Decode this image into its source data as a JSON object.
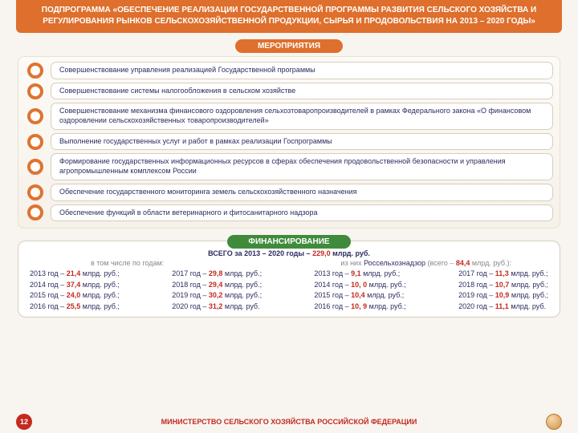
{
  "header": {
    "title": "ПОДПРОГРАММА «ОБЕСПЕЧЕНИЕ РЕАЛИЗАЦИИ ГОСУДАРСТВЕННОЙ ПРОГРАММЫ РАЗВИТИЯ СЕЛЬСКОГО ХОЗЯЙСТВА И РЕГУЛИРОВАНИЯ РЫНКОВ СЕЛЬСКОХОЗЯЙСТВЕННОЙ ПРОДУКЦИИ, СЫРЬЯ И ПРОДОВОЛЬСТВИЯ НА 2013 – 2020 ГОДЫ»"
  },
  "tabs": {
    "activities_label": "МЕРОПРИЯТИЯ",
    "finance_label": "ФИНАНСИРОВАНИЕ"
  },
  "activities": [
    "Совершенствование управления реализацией Государственной программы",
    "Совершенствование системы налогообложения в сельском хозяйстве",
    "Совершенствование механизма финансового оздоровления сельхозтоваропроизводителей в рамках Федерального закона «О финансовом оздоровлении сельскохозяйственных товаропроизводителей»",
    "Выполнение государственных услуг и работ в рамках реализации Госпрограммы",
    "Формирование государственных информационных ресурсов в сферах обеспечения продовольственной безопасности и управления агропромышленным комплексом России",
    "Обеспечение государственного мониторинга земель сельскохозяйственного назначения",
    "Обеспечение функций в области ветеринарного и фитосанитарного надзора"
  ],
  "finance": {
    "total_prefix": "ВСЕГО за 2013 – 2020 годы – ",
    "total_value": "229,0",
    "total_suffix": " млрд. руб.",
    "by_years_label": "в том числе по годам:",
    "rossel_prefix": "из них ",
    "rossel_name": "Россельхознадзор",
    "rossel_mid": " (всего – ",
    "rossel_value": "84,4",
    "rossel_suffix": " млрд. руб.):",
    "left": [
      {
        "year": "2013 год – ",
        "val": "21,4",
        "unit": " млрд. руб.;"
      },
      {
        "year": "2014 год – ",
        "val": "37,4",
        "unit": " млрд. руб.;"
      },
      {
        "year": "2015 год – ",
        "val": "24,0",
        "unit": " млрд. руб.;"
      },
      {
        "year": "2016 год – ",
        "val": "25,5",
        "unit": " млрд. руб.;"
      }
    ],
    "left2": [
      {
        "year": "2017 год – ",
        "val": "29,8",
        "unit": " млрд. руб.;"
      },
      {
        "year": "2018 год – ",
        "val": "29,4",
        "unit": " млрд. руб.;"
      },
      {
        "year": "2019 год – ",
        "val": "30,2",
        "unit": " млрд. руб.;"
      },
      {
        "year": "2020 год – ",
        "val": "31,2",
        "unit": " млрд. руб."
      }
    ],
    "right": [
      {
        "year": "2013 год –   ",
        "val": "9,1",
        "unit": " млрд. руб.;"
      },
      {
        "year": "2014 год –  ",
        "val": "10, 0",
        "unit": " млрд. руб.;"
      },
      {
        "year": "2015 год –  ",
        "val": "10,4",
        "unit": " млрд. руб.;"
      },
      {
        "year": "2016 год –  ",
        "val": "10, 9",
        "unit": " млрд. руб.;"
      }
    ],
    "right2": [
      {
        "year": "2017 год – ",
        "val": "11,3",
        "unit": " млрд. руб.;"
      },
      {
        "year": "2018 год – ",
        "val": "10,7",
        "unit": " млрд. руб.;"
      },
      {
        "year": "2019 год – ",
        "val": "10,9",
        "unit": " млрд. руб.;"
      },
      {
        "year": "2020 год – ",
        "val": "11,1",
        "unit": " млрд. руб."
      }
    ]
  },
  "footer": {
    "page_number": "12",
    "ministry": "МИНИСТЕРСТВО СЕЛЬСКОГО ХОЗЯЙСТВА РОССИЙСКОЙ ФЕДЕРАЦИИ"
  },
  "colors": {
    "orange": "#de6f2c",
    "green": "#3f8b3b",
    "red": "#c32a1f",
    "text": "#2c2c60",
    "card_border": "#d7cebd",
    "page_bg": "#f8f5f0"
  },
  "typography": {
    "base_fontsize_pt": 9,
    "header_fontsize_pt": 10,
    "font_family": "Arial"
  }
}
